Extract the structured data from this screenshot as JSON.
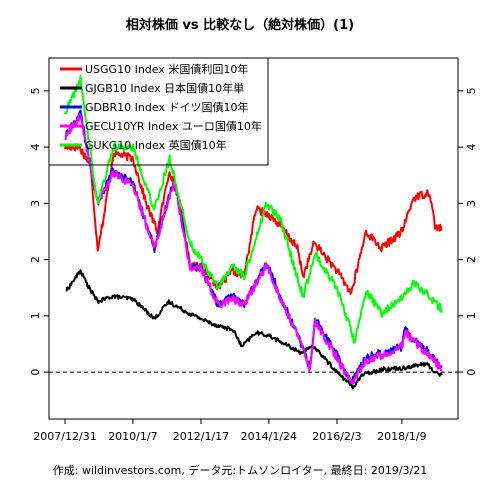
{
  "chart_data": {
    "type": "line",
    "title": "相対株価 vs 比較なし（絶対株価）(1)",
    "caption": "作成: wildinvestors.com, データ元:トムソンロイター, 最終日: 2019/3/21",
    "xlabel": "",
    "ylabel": "",
    "x_ticks": [
      "2007/12/31",
      "2010/1/7",
      "2012/1/17",
      "2014/1/24",
      "2016/2/3",
      "2018/1/9"
    ],
    "x_tick_dates": [
      "2007-12-31",
      "2010-01-07",
      "2012-01-17",
      "2014-01-24",
      "2016-02-03",
      "2018-01-09"
    ],
    "x_range": [
      "2007-12-31",
      "2019-03-21"
    ],
    "ylim": [
      -0.55,
      5.3
    ],
    "y_ticks": [
      0,
      1,
      2,
      3,
      4,
      5
    ],
    "reference_line": {
      "y": 0,
      "style": "dashed",
      "color": "#000000"
    },
    "grid": false,
    "legend_position": "top-left",
    "series": [
      {
        "name": "USGG10 Index 米国債利回10年",
        "color": "#ff0000",
        "x": [
          "2007-12-31",
          "2008-06-01",
          "2008-10-01",
          "2008-12-20",
          "2009-03-01",
          "2009-06-10",
          "2010-01-07",
          "2010-06-01",
          "2010-10-01",
          "2011-02-10",
          "2011-06-01",
          "2011-09-20",
          "2012-01-17",
          "2012-07-25",
          "2013-01-01",
          "2013-05-01",
          "2013-09-05",
          "2014-01-24",
          "2014-06-01",
          "2014-12-01",
          "2015-02-01",
          "2015-06-01",
          "2016-02-03",
          "2016-07-08",
          "2016-12-15",
          "2017-06-01",
          "2018-01-09",
          "2018-05-17",
          "2018-11-08",
          "2019-01-03",
          "2019-03-21"
        ],
        "y": [
          4.0,
          4.0,
          3.7,
          2.2,
          2.8,
          3.9,
          3.8,
          3.0,
          2.5,
          3.6,
          3.0,
          1.9,
          1.9,
          1.5,
          1.8,
          1.7,
          2.9,
          2.8,
          2.6,
          2.2,
          1.7,
          2.3,
          1.8,
          1.4,
          2.5,
          2.2,
          2.5,
          3.1,
          3.2,
          2.6,
          2.55
        ]
      },
      {
        "name": "GJGB10 Index 日本国債10年単",
        "color": "#000000",
        "x": [
          "2008-01-15",
          "2008-06-16",
          "2008-09-01",
          "2008-12-20",
          "2009-06-01",
          "2010-01-07",
          "2010-08-30",
          "2011-02-01",
          "2011-09-01",
          "2012-01-17",
          "2012-06-01",
          "2013-01-01",
          "2013-04-05",
          "2013-09-01",
          "2014-01-24",
          "2014-12-31",
          "2015-06-01",
          "2016-02-03",
          "2016-07-27",
          "2016-11-01",
          "2017-06-01",
          "2018-01-09",
          "2018-10-04",
          "2019-01-01",
          "2019-03-21"
        ],
        "y": [
          1.45,
          1.8,
          1.55,
          1.25,
          1.35,
          1.3,
          0.95,
          1.25,
          1.05,
          0.95,
          0.85,
          0.75,
          0.45,
          0.7,
          0.65,
          0.35,
          0.45,
          0.0,
          -0.27,
          -0.05,
          0.05,
          0.07,
          0.15,
          0.0,
          -0.05
        ]
      },
      {
        "name": "GDBR10 Index ドイツ国債10年",
        "color": "#0000ff",
        "x": [
          "2007-12-31",
          "2008-06-16",
          "2008-12-20",
          "2009-06-10",
          "2010-01-07",
          "2010-08-30",
          "2011-04-01",
          "2011-09-20",
          "2012-01-17",
          "2012-07-20",
          "2013-01-01",
          "2013-05-01",
          "2013-12-31",
          "2014-06-01",
          "2014-12-31",
          "2015-04-17",
          "2015-06-10",
          "2016-02-03",
          "2016-07-08",
          "2016-12-15",
          "2017-06-01",
          "2018-01-09",
          "2018-02-10",
          "2018-11-01",
          "2019-03-21"
        ],
        "y": [
          4.2,
          4.6,
          3.0,
          3.6,
          3.35,
          2.2,
          3.45,
          1.9,
          1.85,
          1.2,
          1.35,
          1.2,
          1.95,
          1.35,
          0.55,
          0.08,
          0.95,
          0.3,
          -0.18,
          0.25,
          0.35,
          0.45,
          0.75,
          0.35,
          0.08
        ]
      },
      {
        "name": "GECU10YR Index ユーロ国債10年",
        "color": "#ff00ff",
        "x": [
          "2007-12-31",
          "2008-06-16",
          "2008-12-20",
          "2009-06-10",
          "2010-01-07",
          "2010-08-30",
          "2011-04-01",
          "2011-09-20",
          "2012-01-17",
          "2012-07-20",
          "2013-01-01",
          "2013-05-01",
          "2013-12-31",
          "2014-06-01",
          "2014-12-31",
          "2015-04-17",
          "2015-06-10",
          "2016-02-03",
          "2016-07-08",
          "2016-12-15",
          "2017-06-01",
          "2018-01-09",
          "2018-02-10",
          "2018-11-01",
          "2019-03-21"
        ],
        "y": [
          4.15,
          4.55,
          3.0,
          3.55,
          3.3,
          2.2,
          3.4,
          1.85,
          1.85,
          1.2,
          1.3,
          1.2,
          1.9,
          1.3,
          0.55,
          0.05,
          0.9,
          0.25,
          -0.2,
          0.2,
          0.3,
          0.45,
          0.7,
          0.3,
          0.05
        ]
      },
      {
        "name": "GUKG10 Index 英国債10年",
        "color": "#00ff00",
        "x": [
          "2007-12-31",
          "2008-06-16",
          "2008-12-20",
          "2009-06-10",
          "2010-01-07",
          "2010-08-30",
          "2011-02-10",
          "2011-09-20",
          "2012-01-17",
          "2012-07-20",
          "2013-01-01",
          "2013-05-01",
          "2013-12-31",
          "2014-06-01",
          "2015-01-30",
          "2015-06-10",
          "2016-02-03",
          "2016-08-12",
          "2016-12-15",
          "2017-06-01",
          "2018-01-09",
          "2018-05-17",
          "2018-11-01",
          "2019-03-21"
        ],
        "y": [
          4.6,
          5.2,
          3.0,
          4.0,
          4.0,
          2.9,
          3.8,
          2.3,
          2.0,
          1.5,
          1.9,
          1.7,
          3.0,
          2.7,
          1.35,
          2.1,
          1.5,
          0.55,
          1.45,
          1.05,
          1.3,
          1.6,
          1.35,
          1.1
        ]
      }
    ]
  }
}
